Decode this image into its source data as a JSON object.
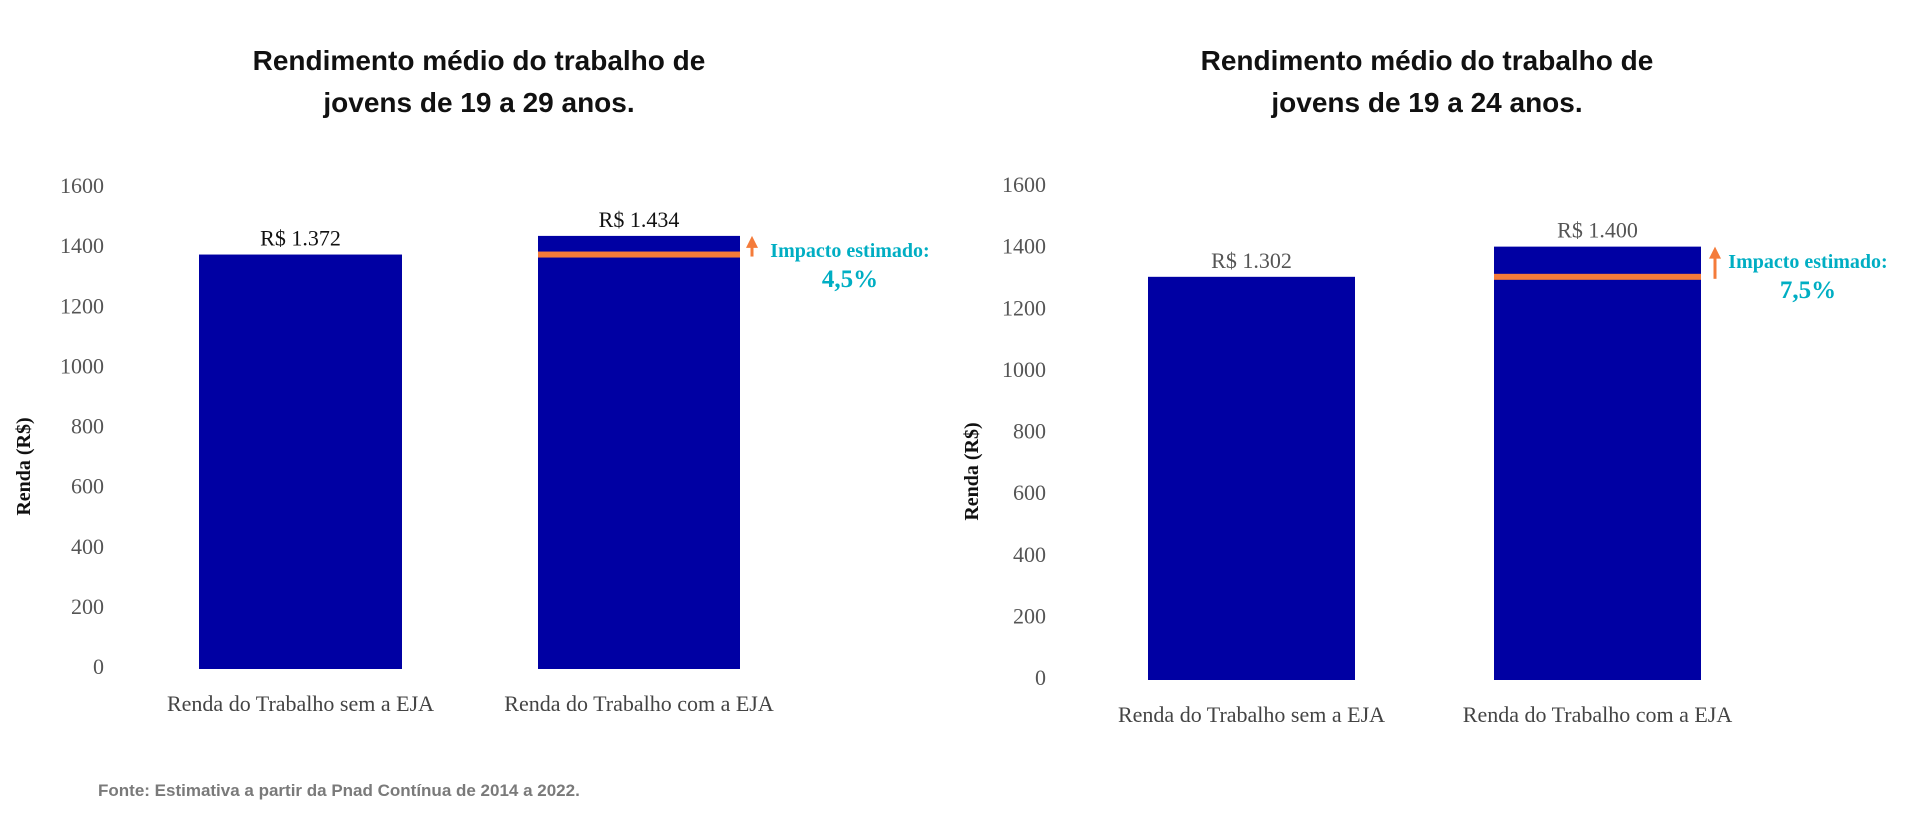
{
  "colors": {
    "bar": "#0000A3",
    "marker": "#F47B3A",
    "annotation": "#00AEC3"
  },
  "source": "Fonte: Estimativa a partir da Pnad Contínua de 2014 a 2022.",
  "chart_data": [
    {
      "type": "bar",
      "title": [
        "Rendimento médio do trabalho de",
        "jovens de 19 a 29 anos."
      ],
      "ylabel": "Renda (R$)",
      "ylim": [
        0,
        1600
      ],
      "yticks": [
        "0",
        "200",
        "400",
        "600",
        "800",
        "1000",
        "1200",
        "1400",
        "1600"
      ],
      "grid": false,
      "categories": [
        "Renda do Trabalho sem a EJA",
        "Renda do Trabalho com a EJA"
      ],
      "values": [
        1372,
        1434
      ],
      "data_labels": [
        "R$ 1.372",
        "R$ 1.434"
      ],
      "reference_line": 1372,
      "annotation": {
        "label": "Impacto estimado:",
        "value": "4,5%"
      }
    },
    {
      "type": "bar",
      "title": [
        "Rendimento médio do trabalho de",
        "jovens de 19 a 24 anos."
      ],
      "ylabel": "Renda (R$)",
      "ylim": [
        0,
        1600
      ],
      "yticks": [
        "0",
        "200",
        "400",
        "600",
        "800",
        "1000",
        "1200",
        "1400",
        "1600"
      ],
      "grid": false,
      "categories": [
        "Renda do Trabalho sem a EJA",
        "Renda do Trabalho com a EJA"
      ],
      "values": [
        1302,
        1400
      ],
      "data_labels": [
        "R$ 1.302",
        "R$ 1.400"
      ],
      "reference_line": 1302,
      "annotation": {
        "label": "Impacto estimado:",
        "value": "7,5%"
      }
    }
  ]
}
